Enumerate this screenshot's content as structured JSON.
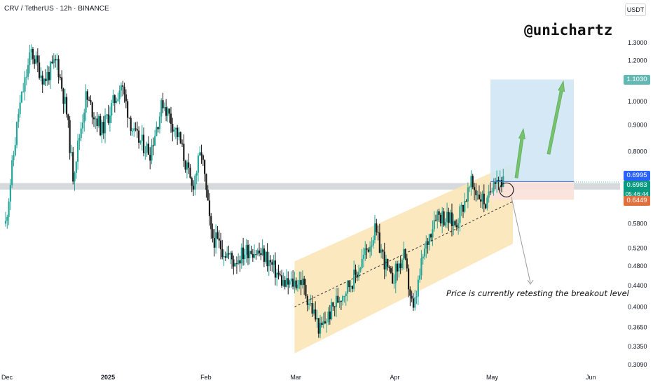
{
  "header": {
    "symbol_line": "CRV / TetherUS · 12h · BINANCE",
    "currency": "USDT"
  },
  "annotations": {
    "brand": "@unichartz",
    "note": "Price is currently retesting the breakout level"
  },
  "price_tags": {
    "target": {
      "label": "1.1030",
      "color": "#62b8b3"
    },
    "entry": {
      "label": "0.6995",
      "color": "#2962ff"
    },
    "current": {
      "label": "0.6983",
      "color": "#089981"
    },
    "timer": {
      "label": "05:46:44",
      "color": "#089981"
    },
    "stop": {
      "label": "0.6449",
      "color": "#e2703f"
    }
  },
  "colors": {
    "up": "#26a69a",
    "down": "#1b1b1b",
    "channel": "#fbe4b4",
    "target_zone": "#cfe7f4",
    "stop_zone": "#fbe0da",
    "level_band": "#cfd3d6",
    "arrows": "#77c26f"
  },
  "chart_data": {
    "type": "candlestick",
    "title": "CRV / TetherUS · 12h · BINANCE",
    "y_scale": "log",
    "ylim": [
      0.3,
      1.4
    ],
    "y_ticks": [
      "1.3000",
      "1.2000",
      "1.1030",
      "1.0000",
      "0.9000",
      "0.8000",
      "0.6995",
      "0.6983",
      "0.6449",
      "0.5800",
      "0.5200",
      "0.4800",
      "0.4400",
      "0.4000",
      "0.3650",
      "0.3350",
      "0.3090"
    ],
    "x_ticks": [
      "Dec",
      "2025",
      "Feb",
      "Mar",
      "Apr",
      "May",
      "Jun"
    ],
    "x_tick_dates": [
      "2024-12-01",
      "2025-01-01",
      "2025-02-01",
      "2025-03-01",
      "2025-04-01",
      "2025-05-01",
      "2025-06-01"
    ],
    "x_range": [
      "2024-12-01",
      "2025-06-02"
    ],
    "breakout_level": {
      "low": 0.675,
      "high": 0.695
    },
    "channel": {
      "upper": [
        {
          "date": "2025-03-01",
          "y": 0.49
        },
        {
          "date": "2025-05-08",
          "y": 0.76
        }
      ],
      "lower": [
        {
          "date": "2025-03-01",
          "y": 0.325
        },
        {
          "date": "2025-05-08",
          "y": 0.53
        }
      ],
      "mid": [
        {
          "date": "2025-03-01",
          "y": 0.4
        },
        {
          "date": "2025-05-08",
          "y": 0.64
        }
      ]
    },
    "position": {
      "start": "2025-05-01",
      "end": "2025-05-27",
      "entry": 0.6995,
      "target": 1.103,
      "stop": 0.6449
    },
    "candle_anchors": [
      {
        "date": "2024-12-01",
        "y": 0.58
      },
      {
        "date": "2024-12-05",
        "y": 0.95
      },
      {
        "date": "2024-12-09",
        "y": 1.25
      },
      {
        "date": "2024-12-13",
        "y": 1.1
      },
      {
        "date": "2024-12-17",
        "y": 1.2
      },
      {
        "date": "2024-12-20",
        "y": 0.95
      },
      {
        "date": "2024-12-22",
        "y": 0.72
      },
      {
        "date": "2024-12-26",
        "y": 1.02
      },
      {
        "date": "2024-12-31",
        "y": 0.88
      },
      {
        "date": "2025-01-06",
        "y": 1.08
      },
      {
        "date": "2025-01-10",
        "y": 0.86
      },
      {
        "date": "2025-01-15",
        "y": 0.8
      },
      {
        "date": "2025-01-19",
        "y": 1.0
      },
      {
        "date": "2025-01-24",
        "y": 0.85
      },
      {
        "date": "2025-01-28",
        "y": 0.68
      },
      {
        "date": "2025-01-31",
        "y": 0.8
      },
      {
        "date": "2025-02-03",
        "y": 0.55
      },
      {
        "date": "2025-02-10",
        "y": 0.49
      },
      {
        "date": "2025-02-15",
        "y": 0.52
      },
      {
        "date": "2025-02-20",
        "y": 0.5
      },
      {
        "date": "2025-02-26",
        "y": 0.44
      },
      {
        "date": "2025-03-03",
        "y": 0.45
      },
      {
        "date": "2025-03-09",
        "y": 0.36
      },
      {
        "date": "2025-03-14",
        "y": 0.41
      },
      {
        "date": "2025-03-20",
        "y": 0.46
      },
      {
        "date": "2025-03-26",
        "y": 0.56
      },
      {
        "date": "2025-03-31",
        "y": 0.45
      },
      {
        "date": "2025-04-04",
        "y": 0.5
      },
      {
        "date": "2025-04-07",
        "y": 0.39
      },
      {
        "date": "2025-04-10",
        "y": 0.5
      },
      {
        "date": "2025-04-14",
        "y": 0.61
      },
      {
        "date": "2025-04-20",
        "y": 0.58
      },
      {
        "date": "2025-04-25",
        "y": 0.69
      },
      {
        "date": "2025-04-30",
        "y": 0.63
      },
      {
        "date": "2025-05-02",
        "y": 0.72
      },
      {
        "date": "2025-05-05",
        "y": 0.6983
      }
    ]
  }
}
